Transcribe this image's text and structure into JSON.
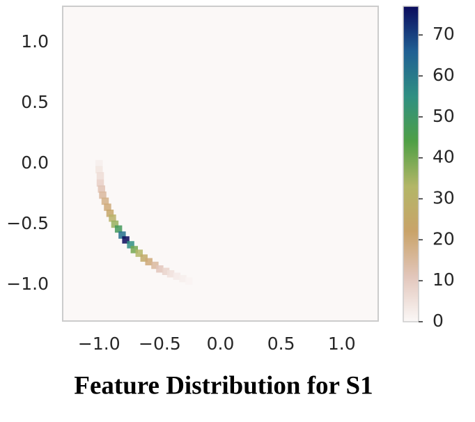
{
  "chart_data": {
    "type": "hist2d",
    "title": "Feature Distribution for S1",
    "x": [
      -1.0,
      -1.0,
      -0.99,
      -0.99,
      -0.98,
      -0.97,
      -0.95,
      -0.93,
      -0.91,
      -0.89,
      -0.87,
      -0.84,
      -0.81,
      -0.78,
      -0.74,
      -0.71,
      -0.67,
      -0.63,
      -0.59,
      -0.54,
      -0.5,
      -0.45,
      -0.41,
      -0.36,
      -0.31,
      -0.26
    ],
    "y": [
      0.0,
      -0.05,
      -0.1,
      -0.16,
      -0.21,
      -0.26,
      -0.31,
      -0.36,
      -0.41,
      -0.45,
      -0.5,
      -0.54,
      -0.59,
      -0.63,
      -0.67,
      -0.71,
      -0.74,
      -0.78,
      -0.81,
      -0.84,
      -0.87,
      -0.89,
      -0.91,
      -0.93,
      -0.95,
      -0.97
    ],
    "values": [
      2,
      4,
      6,
      9,
      12,
      15,
      18,
      20,
      24,
      30,
      36,
      48,
      62,
      77,
      55,
      40,
      33,
      26,
      20,
      15,
      11,
      8,
      5,
      3,
      2,
      1
    ],
    "xlim": [
      -1.3,
      1.3
    ],
    "ylim": [
      -1.3,
      1.3
    ],
    "xticks": [
      {
        "value": -1.0,
        "label": "−1.0"
      },
      {
        "value": -0.5,
        "label": "−0.5"
      },
      {
        "value": 0.0,
        "label": "0.0"
      },
      0.5,
      {
        "value": 1.0,
        "label": "1.0"
      }
    ],
    "yticks": [
      {
        "value": -1.0,
        "label": "−1.0"
      },
      {
        "value": -0.5,
        "label": "−0.5"
      },
      {
        "value": 0.0,
        "label": "0.0"
      },
      0.5,
      {
        "value": 1.0,
        "label": "1.0"
      }
    ],
    "clim": [
      0,
      77
    ],
    "cticks": [
      0,
      10,
      20,
      30,
      40,
      50,
      60,
      70
    ],
    "colormap": [
      "#fbf8f7",
      "#e2c6bb",
      "#c9a369",
      "#b3b667",
      "#4f9f45",
      "#2f8f82",
      "#1f5f93",
      "#0b0b5c"
    ],
    "grid": false
  }
}
